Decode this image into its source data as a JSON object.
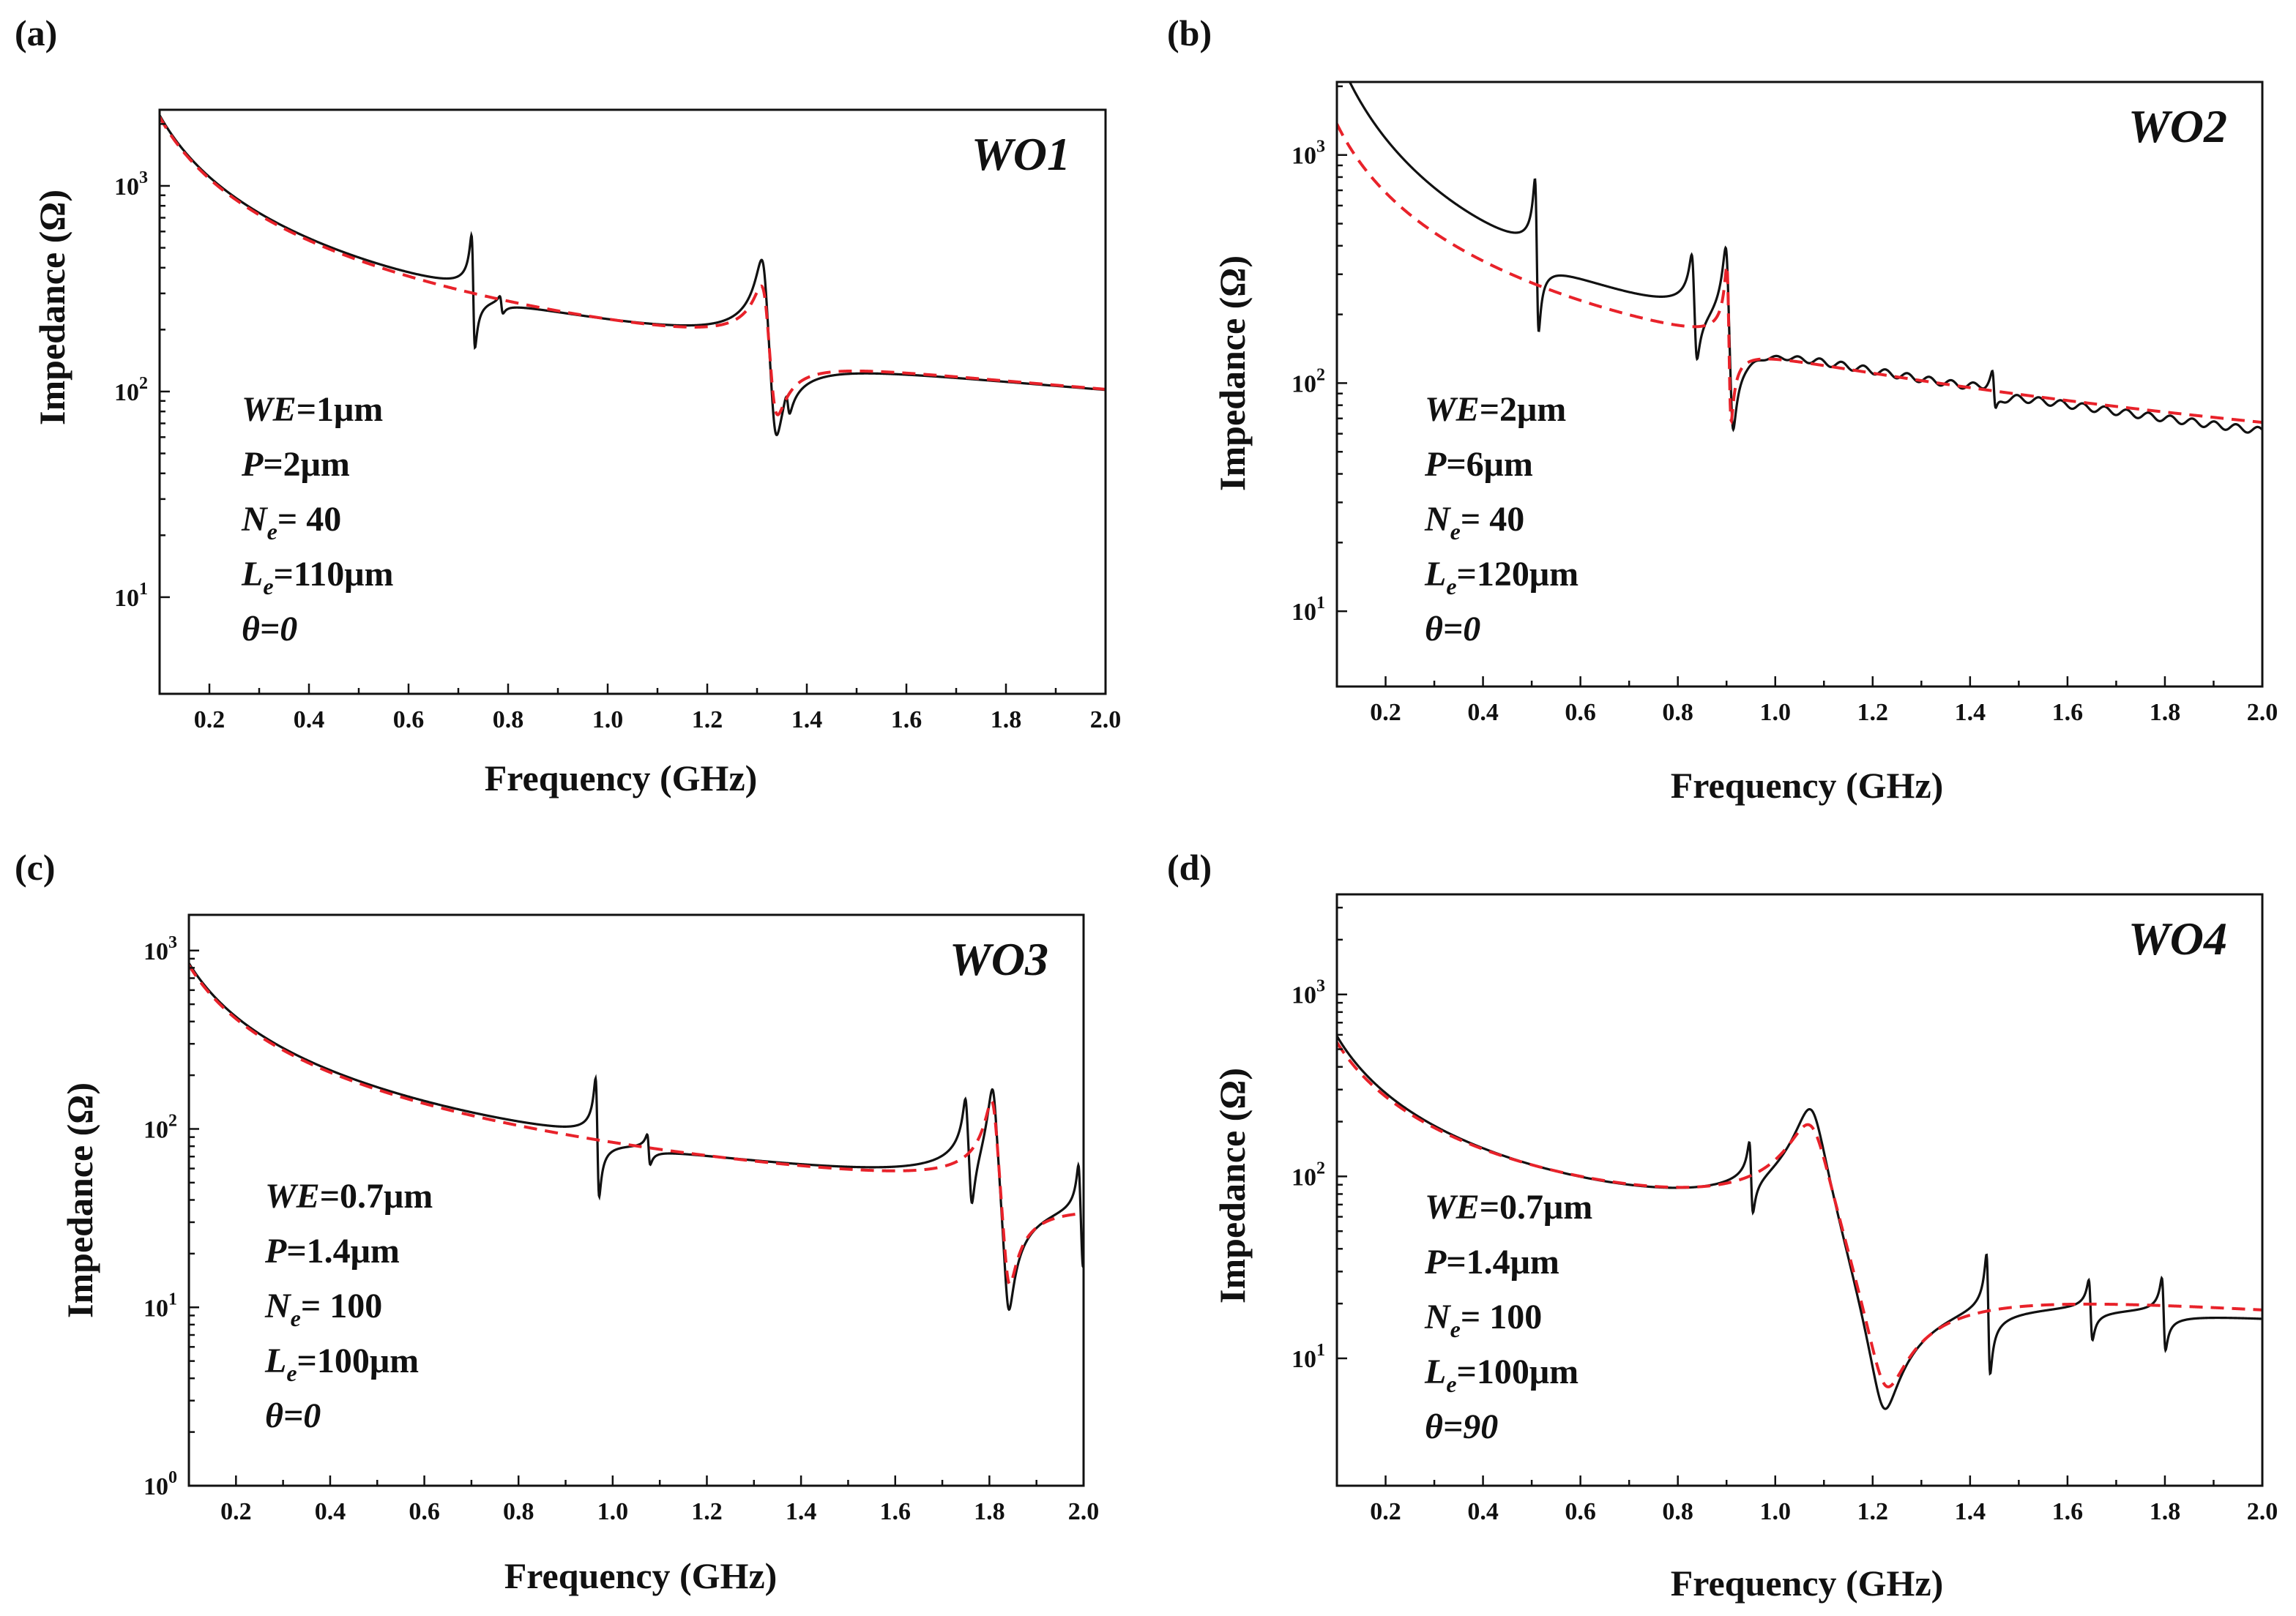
{
  "chart_data": [
    {
      "type": "line",
      "panel": "(a)",
      "sample": "WO1",
      "xlabel": "Frequency (GHz)",
      "ylabel": "Impedance (Ω)",
      "xlim": [
        0.1,
        2.0
      ],
      "ylim_log10": [
        0.53,
        3.37
      ],
      "xticks": [
        "0.2",
        "0.4",
        "0.6",
        "0.8",
        "1.0",
        "1.2",
        "1.4",
        "1.6",
        "1.8",
        "2.0"
      ],
      "yticks": [
        {
          "value": 10,
          "base": "10",
          "exp": "1"
        },
        {
          "value": 100,
          "base": "10",
          "exp": "2"
        },
        {
          "value": 1000,
          "base": "10",
          "exp": "3"
        }
      ],
      "params": [
        {
          "sym": "WE",
          "sub": "",
          "rest": "=1μm"
        },
        {
          "sym": "P",
          "sub": "",
          "rest": "=2μm"
        },
        {
          "sym": "N",
          "sub": "e",
          "rest": "= 40"
        },
        {
          "sym": "L",
          "sub": "e",
          "rest": "=110μm"
        },
        {
          "sym": "θ=0",
          "sub": "",
          "rest": ""
        }
      ],
      "model": {
        "base": {
          "k": 210,
          "alpha": 1.0
        },
        "resonances": [
          {
            "fr": 1.315,
            "fa": 1.335,
            "w": 0.013,
            "strength": 1.0
          }
        ]
      },
      "measured": {
        "base_scale": 1.0,
        "base_alpha": 1.0,
        "resonances": [
          {
            "fr": 1.313,
            "fa": 1.336,
            "w": 0.01,
            "strength": 1.0
          },
          {
            "fr": 0.728,
            "fa": 0.732,
            "w": 0.003,
            "strength": 1.0
          },
          {
            "fr": 0.785,
            "fa": 0.788,
            "w": 0.003,
            "strength": 0.2
          },
          {
            "fr": 1.36,
            "fa": 1.364,
            "w": 0.004,
            "strength": 0.3
          }
        ],
        "ripple": 0
      }
    },
    {
      "type": "line",
      "panel": "(b)",
      "sample": "WO2",
      "xlabel": "Frequency (GHz)",
      "ylabel": "Impedance (Ω)",
      "xlim": [
        0.1,
        2.0
      ],
      "ylim_log10": [
        0.67,
        3.32
      ],
      "xticks": [
        "0.2",
        "0.4",
        "0.6",
        "0.8",
        "1.0",
        "1.2",
        "1.4",
        "1.6",
        "1.8",
        "2.0"
      ],
      "yticks": [
        {
          "value": 10,
          "base": "10",
          "exp": "1"
        },
        {
          "value": 100,
          "base": "10",
          "exp": "2"
        },
        {
          "value": 1000,
          "base": "10",
          "exp": "3"
        }
      ],
      "params": [
        {
          "sym": "WE",
          "sub": "",
          "rest": "=2μm"
        },
        {
          "sym": "P",
          "sub": "",
          "rest": "=6μm"
        },
        {
          "sym": "N",
          "sub": "e",
          "rest": "= 40"
        },
        {
          "sym": "L",
          "sub": "e",
          "rest": "=120μm"
        },
        {
          "sym": "θ=0",
          "sub": "",
          "rest": ""
        }
      ],
      "model": {
        "base": {
          "k": 135,
          "alpha": 1.0
        },
        "resonances": [
          {
            "fr": 0.902,
            "fa": 0.908,
            "w": 0.0035,
            "strength": 1.0
          }
        ]
      },
      "measured": {
        "base_scale": 1.1,
        "base_alpha": 1.25,
        "resonances": [
          {
            "fr": 0.9,
            "fa": 0.912,
            "w": 0.005,
            "strength": 0.9
          },
          {
            "fr": 0.508,
            "fa": 0.513,
            "w": 0.003,
            "strength": 1.0
          },
          {
            "fr": 0.83,
            "fa": 0.838,
            "w": 0.004,
            "strength": 0.6
          },
          {
            "fr": 1.447,
            "fa": 1.451,
            "w": 0.003,
            "strength": 0.3
          }
        ],
        "ripple": 0.035
      }
    },
    {
      "type": "line",
      "panel": "(c)",
      "sample": "WO3",
      "xlabel": "Frequency (GHz)",
      "ylabel": "Impedance (Ω)",
      "xlim": [
        0.1,
        2.0
      ],
      "ylim_log10": [
        0.0,
        3.2
      ],
      "xticks": [
        "0.2",
        "0.4",
        "0.6",
        "0.8",
        "1.0",
        "1.2",
        "1.4",
        "1.6",
        "1.8",
        "2.0"
      ],
      "yticks": [
        {
          "value": 1,
          "base": "10",
          "exp": "0"
        },
        {
          "value": 10,
          "base": "10",
          "exp": "1"
        },
        {
          "value": 100,
          "base": "10",
          "exp": "2"
        },
        {
          "value": 1000,
          "base": "10",
          "exp": "3"
        }
      ],
      "params": [
        {
          "sym": "WE",
          "sub": "",
          "rest": "=0.7μm"
        },
        {
          "sym": "P",
          "sub": "",
          "rest": "=1.4μm"
        },
        {
          "sym": "N",
          "sub": "e",
          "rest": "= 100"
        },
        {
          "sym": "L",
          "sub": "e",
          "rest": "=100μm"
        },
        {
          "sym": "θ=0",
          "sub": "",
          "rest": ""
        }
      ],
      "model": {
        "base": {
          "k": 80,
          "alpha": 1.0
        },
        "resonances": [
          {
            "fr": 1.808,
            "fa": 1.84,
            "w": 0.011,
            "strength": 1.0
          }
        ]
      },
      "measured": {
        "base_scale": 1.0,
        "base_alpha": 1.0,
        "resonances": [
          {
            "fr": 1.808,
            "fa": 1.84,
            "w": 0.008,
            "strength": 1.0
          },
          {
            "fr": 0.965,
            "fa": 0.97,
            "w": 0.003,
            "strength": 1.0
          },
          {
            "fr": 1.075,
            "fa": 1.078,
            "w": 0.003,
            "strength": 0.4
          },
          {
            "fr": 1.75,
            "fa": 1.762,
            "w": 0.004,
            "strength": 0.6
          },
          {
            "fr": 1.99,
            "fa": 1.998,
            "w": 0.003,
            "strength": 0.6
          }
        ],
        "ripple": 0
      }
    },
    {
      "type": "line",
      "panel": "(d)",
      "sample": "WO4",
      "xlabel": "Frequency (GHz)",
      "ylabel": "Impedance (Ω)",
      "xlim": [
        0.1,
        2.0
      ],
      "ylim_log10": [
        0.3,
        3.55
      ],
      "xticks": [
        "0.2",
        "0.4",
        "0.6",
        "0.8",
        "1.0",
        "1.2",
        "1.4",
        "1.6",
        "1.8",
        "2.0"
      ],
      "yticks": [
        {
          "value": 10,
          "base": "10",
          "exp": "1"
        },
        {
          "value": 100,
          "base": "10",
          "exp": "2"
        },
        {
          "value": 1000,
          "base": "10",
          "exp": "3"
        }
      ],
      "params": [
        {
          "sym": "WE",
          "sub": "",
          "rest": "=0.7μm"
        },
        {
          "sym": "P",
          "sub": "",
          "rest": "=1.4μm"
        },
        {
          "sym": "N",
          "sub": "e",
          "rest": "= 100"
        },
        {
          "sym": "L",
          "sub": "e",
          "rest": "=100μm"
        },
        {
          "sym": "θ=90",
          "sub": "",
          "rest": ""
        }
      ],
      "model": {
        "base": {
          "k": 42,
          "alpha": 1.0
        },
        "resonances": [
          {
            "fr": 1.075,
            "fa": 1.225,
            "w": 0.032,
            "strength": 1.0
          }
        ]
      },
      "measured": {
        "base_scale": 0.95,
        "base_alpha": 1.05,
        "resonances": [
          {
            "fr": 1.075,
            "fa": 1.222,
            "w": 0.024,
            "strength": 1.0
          },
          {
            "fr": 0.948,
            "fa": 0.953,
            "w": 0.003,
            "strength": 0.6
          },
          {
            "fr": 1.435,
            "fa": 1.44,
            "w": 0.003,
            "strength": 1.0
          },
          {
            "fr": 1.645,
            "fa": 1.65,
            "w": 0.003,
            "strength": 0.5
          },
          {
            "fr": 1.795,
            "fa": 1.8,
            "w": 0.003,
            "strength": 0.6
          }
        ],
        "ripple": 0
      }
    }
  ],
  "style": {
    "measured_color": "#111111",
    "fit_color": "#e8222a"
  }
}
